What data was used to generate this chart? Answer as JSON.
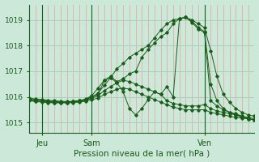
{
  "title": "Pression niveau de la mer( hPa )",
  "background_color": "#cce8d8",
  "grid_color": "#aacfba",
  "vgrid_color": "#e8a0a0",
  "line_color": "#1a5c1a",
  "xlim": [
    0,
    72
  ],
  "ylim": [
    1014.6,
    1019.6
  ],
  "yticks": [
    1015,
    1016,
    1017,
    1018,
    1019
  ],
  "xtick_positions": [
    4,
    20,
    56
  ],
  "xtick_labels": [
    "Jeu",
    "Sam",
    "Ven"
  ],
  "vlines": [
    4,
    20,
    56
  ],
  "vgrid_step": 2,
  "series": [
    [
      0,
      1015.95,
      2,
      1015.92,
      4,
      1015.9,
      6,
      1015.87,
      8,
      1015.85,
      10,
      1015.83,
      12,
      1015.82,
      14,
      1015.83,
      16,
      1015.85,
      18,
      1015.9,
      20,
      1016.0,
      22,
      1016.15,
      24,
      1016.45,
      26,
      1016.75,
      28,
      1017.1,
      30,
      1017.3,
      32,
      1017.55,
      34,
      1017.7,
      36,
      1017.85,
      38,
      1018.0,
      40,
      1018.3,
      42,
      1018.6,
      44,
      1018.85,
      46,
      1019.0,
      48,
      1019.05,
      50,
      1019.1,
      52,
      1019.0,
      54,
      1018.85,
      56,
      1018.7,
      58,
      1017.8,
      60,
      1016.8,
      62,
      1016.1,
      64,
      1015.8,
      66,
      1015.55,
      68,
      1015.4,
      70,
      1015.3,
      72,
      1015.25
    ],
    [
      0,
      1015.9,
      2,
      1015.87,
      4,
      1015.85,
      6,
      1015.83,
      8,
      1015.82,
      10,
      1015.8,
      12,
      1015.8,
      14,
      1015.82,
      16,
      1015.85,
      18,
      1015.92,
      20,
      1016.05,
      22,
      1016.35,
      24,
      1016.65,
      26,
      1016.8,
      28,
      1016.6,
      30,
      1016.7,
      32,
      1016.9,
      34,
      1017.0,
      36,
      1017.55,
      38,
      1017.85,
      40,
      1018.1,
      42,
      1018.35,
      44,
      1018.5,
      46,
      1018.85,
      48,
      1019.05,
      50,
      1019.1,
      52,
      1018.95,
      54,
      1018.7,
      56,
      1018.55,
      58,
      1016.5,
      60,
      1015.85,
      62,
      1015.55,
      64,
      1015.4,
      66,
      1015.3,
      68,
      1015.2,
      70,
      1015.15,
      72,
      1015.1
    ],
    [
      0,
      1015.92,
      2,
      1015.88,
      4,
      1015.85,
      6,
      1015.83,
      8,
      1015.82,
      10,
      1015.8,
      12,
      1015.8,
      14,
      1015.82,
      16,
      1015.85,
      18,
      1015.9,
      20,
      1016.0,
      22,
      1016.1,
      24,
      1016.65,
      26,
      1016.75,
      28,
      1016.55,
      30,
      1016.2,
      32,
      1015.55,
      34,
      1015.3,
      36,
      1015.55,
      38,
      1015.9,
      40,
      1016.2,
      42,
      1016.1,
      44,
      1016.4,
      46,
      1016.0,
      48,
      1019.05,
      50,
      1019.1,
      52,
      1018.9,
      54,
      1018.65,
      56,
      1018.5,
      58,
      1015.85,
      60,
      1015.65,
      62,
      1015.5,
      64,
      1015.4,
      66,
      1015.35,
      68,
      1015.25,
      70,
      1015.15,
      72,
      1015.1
    ],
    [
      0,
      1015.88,
      2,
      1015.84,
      4,
      1015.82,
      6,
      1015.8,
      8,
      1015.78,
      10,
      1015.78,
      12,
      1015.78,
      14,
      1015.8,
      16,
      1015.83,
      18,
      1015.87,
      20,
      1015.95,
      22,
      1016.05,
      24,
      1016.25,
      26,
      1016.4,
      28,
      1016.55,
      30,
      1016.65,
      32,
      1016.6,
      34,
      1016.5,
      36,
      1016.4,
      38,
      1016.3,
      40,
      1016.2,
      42,
      1016.1,
      44,
      1015.85,
      46,
      1015.75,
      48,
      1015.7,
      50,
      1015.65,
      52,
      1015.65,
      54,
      1015.65,
      56,
      1015.7,
      58,
      1015.55,
      60,
      1015.45,
      62,
      1015.4,
      64,
      1015.35,
      66,
      1015.3,
      68,
      1015.25,
      70,
      1015.2,
      72,
      1015.15
    ],
    [
      0,
      1015.85,
      2,
      1015.82,
      4,
      1015.8,
      6,
      1015.78,
      8,
      1015.77,
      10,
      1015.77,
      12,
      1015.77,
      14,
      1015.78,
      16,
      1015.8,
      18,
      1015.83,
      20,
      1015.9,
      22,
      1015.95,
      24,
      1016.1,
      26,
      1016.2,
      28,
      1016.3,
      30,
      1016.35,
      32,
      1016.3,
      34,
      1016.2,
      36,
      1016.1,
      38,
      1016.0,
      40,
      1015.9,
      42,
      1015.8,
      44,
      1015.7,
      46,
      1015.6,
      48,
      1015.55,
      50,
      1015.5,
      52,
      1015.5,
      54,
      1015.5,
      56,
      1015.5,
      58,
      1015.4,
      60,
      1015.35,
      62,
      1015.3,
      64,
      1015.25,
      66,
      1015.2,
      68,
      1015.18,
      70,
      1015.15,
      72,
      1015.1
    ]
  ]
}
